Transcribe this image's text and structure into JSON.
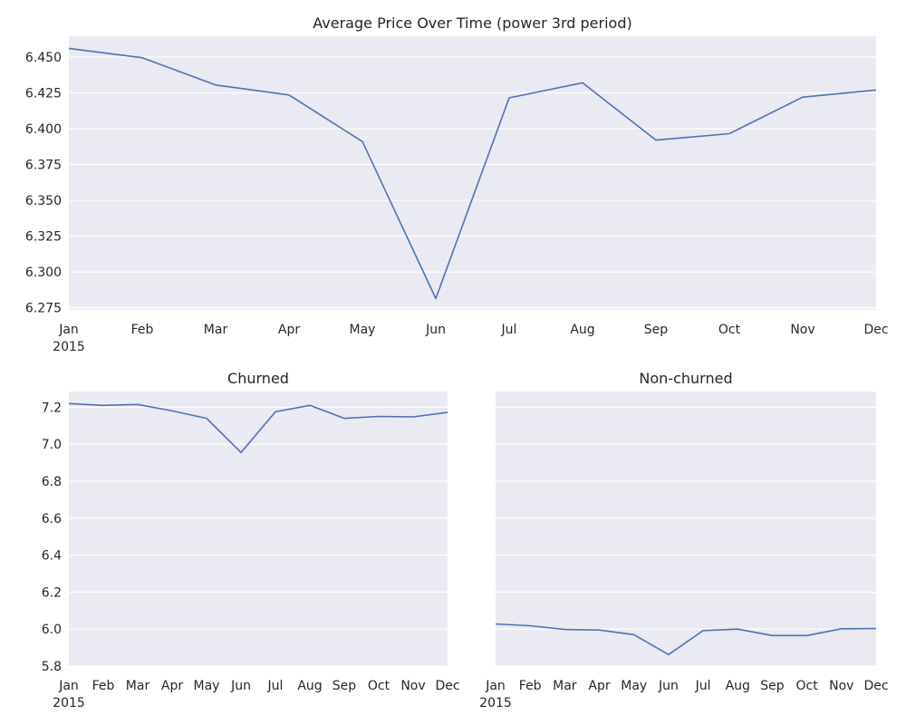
{
  "chart_data": [
    {
      "id": "top",
      "type": "line",
      "title": "Average Price Over Time (power 3rd period)",
      "categories": [
        "Jan",
        "Feb",
        "Mar",
        "Apr",
        "May",
        "Jun",
        "Jul",
        "Aug",
        "Sep",
        "Oct",
        "Nov",
        "Dec"
      ],
      "year_label": "2015",
      "series": [
        {
          "values": [
            6.456,
            6.4495,
            6.4305,
            6.4235,
            6.391,
            6.2815,
            6.4215,
            6.432,
            6.392,
            6.3965,
            6.422,
            6.427
          ]
        }
      ],
      "ylim": [
        6.2735,
        6.4645
      ],
      "yticks": [
        6.275,
        6.3,
        6.325,
        6.35,
        6.375,
        6.4,
        6.425,
        6.45
      ],
      "ytick_labels": [
        "6.275",
        "6.300",
        "6.325",
        "6.350",
        "6.375",
        "6.400",
        "6.425",
        "6.450"
      ],
      "grid": "y"
    },
    {
      "id": "churned",
      "type": "line",
      "title": "Churned",
      "categories": [
        "Jan",
        "Feb",
        "Mar",
        "Apr",
        "May",
        "Jun",
        "Jul",
        "Aug",
        "Sep",
        "Oct",
        "Nov",
        "Dec"
      ],
      "year_label": "2015",
      "series": [
        {
          "values": [
            7.22,
            7.21,
            7.215,
            7.18,
            7.14,
            6.955,
            7.175,
            7.21,
            7.14,
            7.15,
            7.148,
            7.172
          ]
        }
      ],
      "ylim": [
        5.8,
        7.285
      ],
      "yticks": [
        5.8,
        6.0,
        6.2,
        6.4,
        6.6,
        6.8,
        7.0,
        7.2
      ],
      "ytick_labels": [
        "5.8",
        "6.0",
        "6.2",
        "6.4",
        "6.6",
        "6.8",
        "7.0",
        "7.2"
      ],
      "grid": "y"
    },
    {
      "id": "nonchurned",
      "type": "line",
      "title": "Non-churned",
      "categories": [
        "Jan",
        "Feb",
        "Mar",
        "Apr",
        "May",
        "Jun",
        "Jul",
        "Aug",
        "Sep",
        "Oct",
        "Nov",
        "Dec"
      ],
      "year_label": "2015",
      "series": [
        {
          "values": [
            6.028,
            6.018,
            5.998,
            5.995,
            5.97,
            5.862,
            5.992,
            6.0,
            5.965,
            5.965,
            6.002,
            6.003
          ]
        }
      ],
      "ylim": [
        5.8,
        7.285
      ],
      "yticks": [
        5.8,
        6.0,
        6.2,
        6.4,
        6.6,
        6.8,
        7.0,
        7.2
      ],
      "ytick_labels": [],
      "grid": "y"
    }
  ],
  "colors": {
    "line": "#4c72b0",
    "plot_bg": "#eaeaf2",
    "grid": "#ffffff",
    "text": "#262626"
  }
}
